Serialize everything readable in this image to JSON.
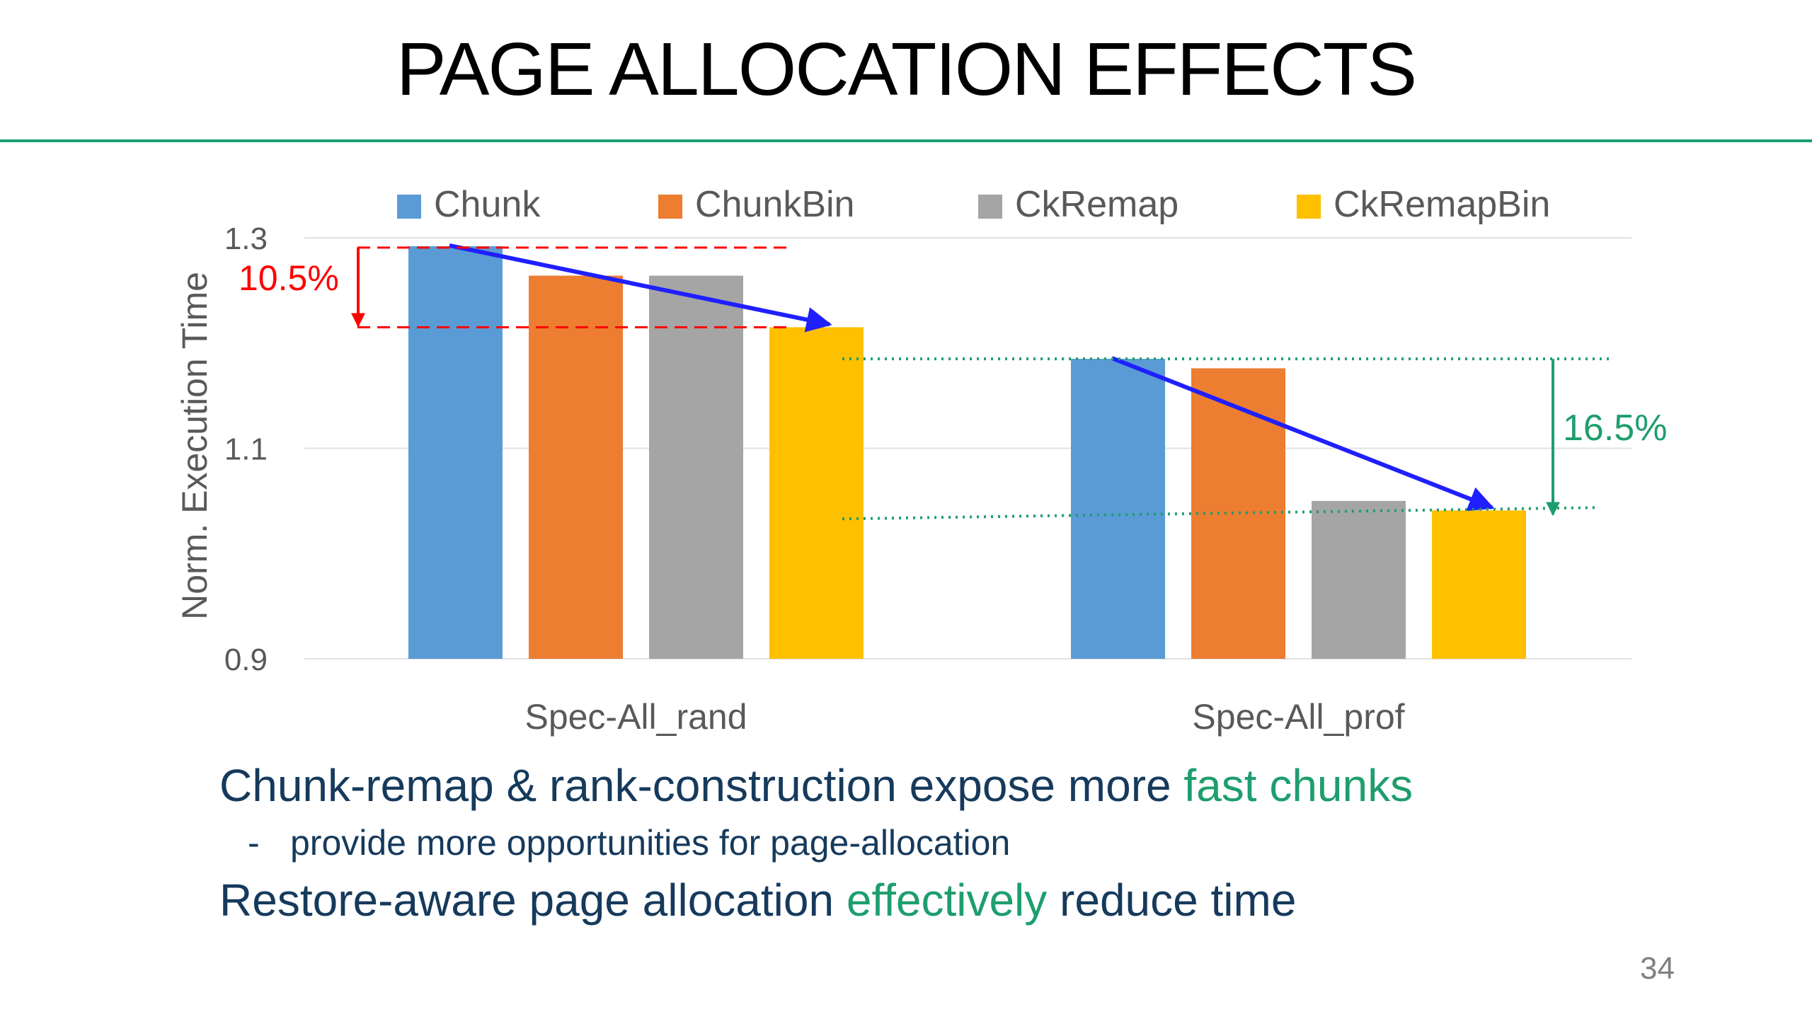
{
  "slide": {
    "title": "PAGE ALLOCATION EFFECTS",
    "page_number": "34",
    "accent_color": "#1e9e6e",
    "text_color": "#163a5c"
  },
  "bullets": {
    "line1_prefix": "Chunk-remap & rank-construction expose more ",
    "line1_highlight": "fast chunks",
    "sub_dash": "-",
    "sub_text": "provide more opportunities for page-allocation",
    "line2_prefix": "Restore-aware page allocation ",
    "line2_highlight": "effectively",
    "line2_suffix": " reduce time"
  },
  "chart_data": {
    "type": "bar",
    "title": "",
    "xlabel": "",
    "ylabel": "Norm. Execution Time",
    "ylim": [
      0.9,
      1.3
    ],
    "yticks": [
      0.9,
      1.1,
      1.3
    ],
    "ytick_labels": [
      "0.9",
      "1.1",
      "1.3"
    ],
    "grid": true,
    "legend_position": "top",
    "categories": [
      "Spec-All_rand",
      "Spec-All_prof"
    ],
    "series": [
      {
        "name": "Chunk",
        "color": "#5b9bd5",
        "values": [
          1.292,
          1.185
        ]
      },
      {
        "name": "ChunkBin",
        "color": "#ed7d31",
        "values": [
          1.264,
          1.176
        ]
      },
      {
        "name": "CkRemap",
        "color": "#a5a5a5",
        "values": [
          1.264,
          1.05
        ]
      },
      {
        "name": "CkRemapBin",
        "color": "#ffc000",
        "values": [
          1.215,
          1.041
        ]
      }
    ],
    "annotations": [
      {
        "text": "10.5%",
        "color": "#ff0000",
        "category": "Spec-All_rand",
        "from_series": "Chunk",
        "to_series": "CkRemapBin"
      },
      {
        "text": "16.5%",
        "color": "#1e9e6e",
        "category": "Spec-All_prof",
        "from_series": "Chunk",
        "to_series": "CkRemapBin"
      }
    ],
    "trend_arrow_color": "#1f1fff"
  }
}
